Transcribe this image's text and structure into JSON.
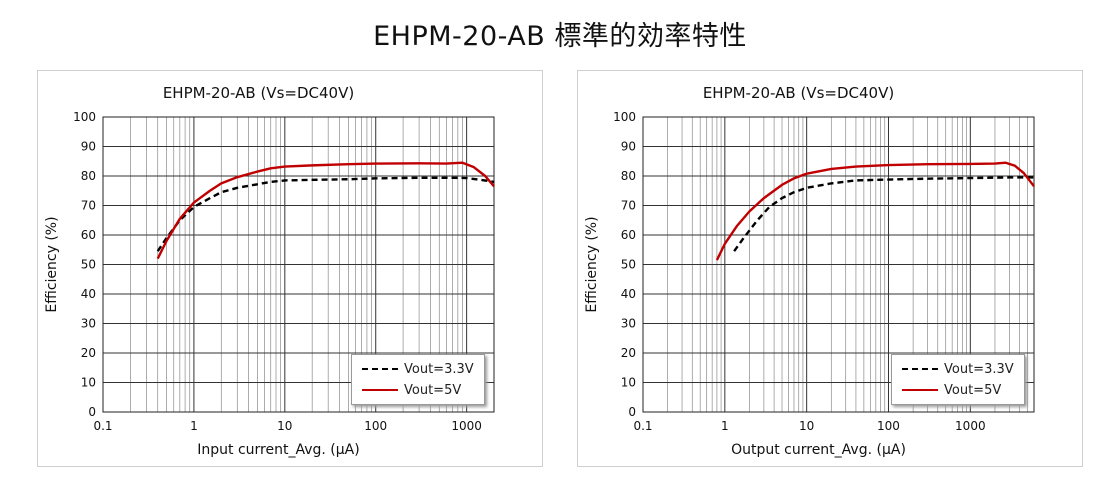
{
  "title": "EHPM-20-AB 標準的効率特性",
  "chart_data": [
    {
      "type": "line",
      "title": "EHPM-20-AB  (Vs=DC40V)",
      "xlabel": "Input current_Avg. (μA)",
      "ylabel": "Efficiency (%)",
      "xscale": "log",
      "xlim": [
        0.1,
        2000
      ],
      "ylim": [
        0,
        100
      ],
      "x_ticks": [
        "0.1",
        "1",
        "10",
        "100",
        "1000"
      ],
      "y_ticks": [
        "0",
        "10",
        "20",
        "30",
        "40",
        "50",
        "60",
        "70",
        "80",
        "90",
        "100"
      ],
      "grid": true,
      "legend": "bottom-right",
      "series": [
        {
          "name": "Vout=3.3V",
          "color": "#000000",
          "dash": true,
          "x": [
            0.4,
            0.5,
            0.7,
            1,
            1.5,
            2,
            3,
            5,
            7,
            10,
            20,
            50,
            100,
            300,
            700,
            1000,
            1500,
            2000
          ],
          "y": [
            54.5,
            59,
            65,
            69.5,
            72.5,
            74.5,
            76,
            77.2,
            78,
            78.5,
            78.7,
            78.9,
            79.2,
            79.4,
            79.4,
            79.3,
            78.6,
            78
          ]
        },
        {
          "name": "Vout=5V",
          "color": "#c00000",
          "dash": false,
          "x": [
            0.4,
            0.5,
            0.7,
            1,
            1.5,
            2,
            3,
            5,
            7,
            10,
            20,
            50,
            100,
            300,
            600,
            900,
            1200,
            1600,
            2000
          ],
          "y": [
            52,
            58,
            65.5,
            71,
            75,
            77.5,
            79.6,
            81.5,
            82.6,
            83.2,
            83.6,
            84,
            84.2,
            84.3,
            84.2,
            84.5,
            83,
            80,
            76.5
          ]
        }
      ]
    },
    {
      "type": "line",
      "title": "EHPM-20-AB  (Vs=DC40V)",
      "xlabel": "Output current_Avg. (μA)",
      "ylabel": "Efficiency (%)",
      "xscale": "log",
      "xlim": [
        0.1,
        6000
      ],
      "ylim": [
        0,
        100
      ],
      "x_ticks": [
        "0.1",
        "1",
        "10",
        "100",
        "1000"
      ],
      "y_ticks": [
        "0",
        "10",
        "20",
        "30",
        "40",
        "50",
        "60",
        "70",
        "80",
        "90",
        "100"
      ],
      "grid": true,
      "legend": "bottom-right",
      "series": [
        {
          "name": "Vout=3.3V",
          "color": "#000000",
          "dash": true,
          "x": [
            1.3,
            1.7,
            2.5,
            3.5,
            5,
            7,
            10,
            20,
            40,
            100,
            300,
            1000,
            3000,
            6000
          ],
          "y": [
            54.5,
            59,
            65,
            69.5,
            72.5,
            74.5,
            76,
            77.5,
            78.5,
            78.8,
            79.1,
            79.3,
            79.5,
            79.5
          ]
        },
        {
          "name": "Vout=5V",
          "color": "#c00000",
          "dash": false,
          "x": [
            0.8,
            1,
            1.4,
            2,
            3,
            5,
            7,
            10,
            20,
            40,
            100,
            300,
            1000,
            2000,
            2700,
            3500,
            4500,
            6000
          ],
          "y": [
            51.5,
            57,
            63,
            68,
            72.5,
            77,
            79.2,
            80.8,
            82.4,
            83.2,
            83.7,
            84,
            84.1,
            84.2,
            84.5,
            83.5,
            81,
            76.5
          ]
        }
      ]
    }
  ]
}
